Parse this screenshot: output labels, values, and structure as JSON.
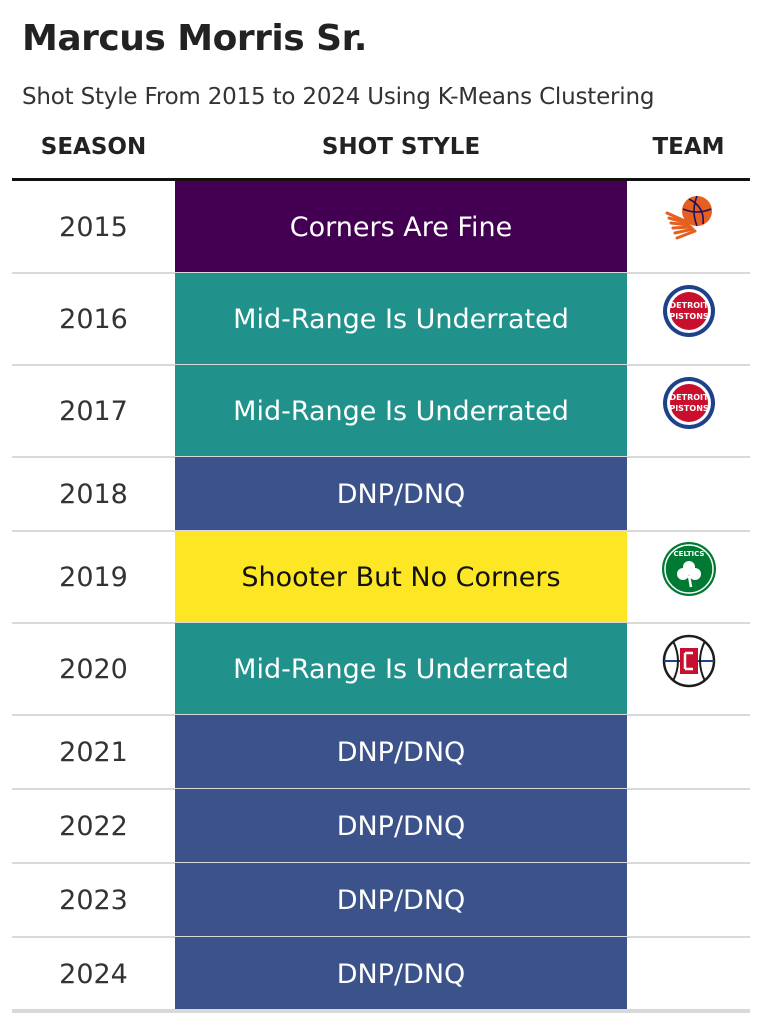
{
  "title": "Marcus Morris Sr.",
  "subtitle": "Shot Style From 2015 to 2024 Using K-Means Clustering",
  "columns": {
    "season": "SEASON",
    "shot_style": "SHOT STYLE",
    "team": "TEAM"
  },
  "colors": {
    "Corners Are Fine": "#430052",
    "Mid-Range Is Underrated": "#21918c",
    "DNP/DNQ": "#3b528b",
    "Shooter But No Corners": "#fde725"
  },
  "text_colors": {
    "Corners Are Fine": "#ffffff",
    "Mid-Range Is Underrated": "#ffffff",
    "DNP/DNQ": "#ffffff",
    "Shooter But No Corners": "#111111"
  },
  "chart_data": {
    "type": "table",
    "rows": [
      {
        "season": "2015",
        "shot_style": "Corners Are Fine",
        "team_logo": "suns-logo"
      },
      {
        "season": "2016",
        "shot_style": "Mid-Range Is Underrated",
        "team_logo": "pistons-logo",
        "logo_text": [
          "DETROIT",
          "PISTONS"
        ]
      },
      {
        "season": "2017",
        "shot_style": "Mid-Range Is Underrated",
        "team_logo": "pistons-logo",
        "logo_text": [
          "DETROIT",
          "PISTONS"
        ]
      },
      {
        "season": "2018",
        "shot_style": "DNP/DNQ",
        "team_logo": ""
      },
      {
        "season": "2019",
        "shot_style": "Shooter But No Corners",
        "team_logo": "celtics-logo",
        "logo_text": [
          "CELTICS"
        ]
      },
      {
        "season": "2020",
        "shot_style": "Mid-Range Is Underrated",
        "team_logo": "clippers-logo"
      },
      {
        "season": "2021",
        "shot_style": "DNP/DNQ",
        "team_logo": ""
      },
      {
        "season": "2022",
        "shot_style": "DNP/DNQ",
        "team_logo": ""
      },
      {
        "season": "2023",
        "shot_style": "DNP/DNQ",
        "team_logo": ""
      },
      {
        "season": "2024",
        "shot_style": "DNP/DNQ",
        "team_logo": ""
      }
    ]
  }
}
